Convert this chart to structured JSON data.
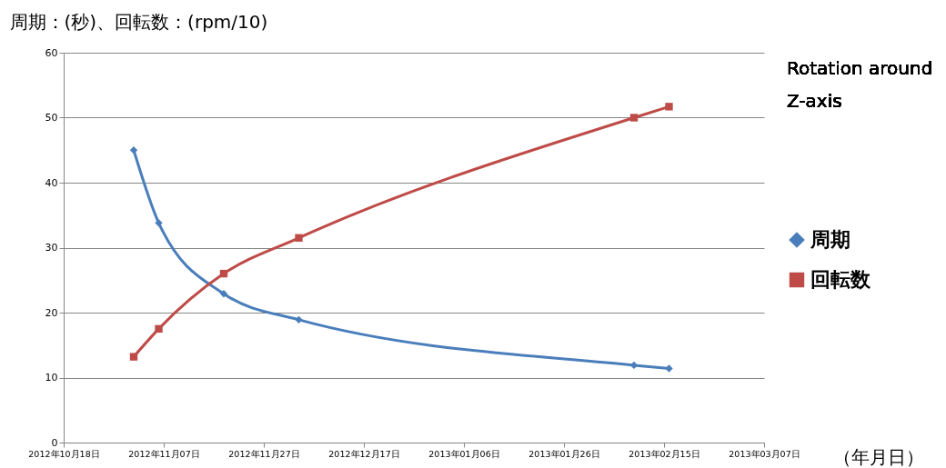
{
  "chart_data": {
    "type": "line",
    "ylabel": "周期：(秒)、回転数：(rpm/10)",
    "xlabel": "（年月日）",
    "annotations": [
      "Rotation around Z-axis"
    ],
    "x": [
      "2012-11-01",
      "2012-11-06",
      "2012-11-19",
      "2012-12-04",
      "2013-02-09",
      "2013-02-16"
    ],
    "series": [
      {
        "name": "周期",
        "color": "#4a7ebb",
        "marker": "diamond",
        "values": [
          45,
          33.8,
          22.9,
          18.9,
          11.9,
          11.4
        ]
      },
      {
        "name": "回転数",
        "color": "#be4b48",
        "marker": "square",
        "values": [
          13.2,
          17.5,
          26,
          31.5,
          50,
          51.7
        ]
      }
    ],
    "xlim": [
      "2012-10-18",
      "2013-03-07"
    ],
    "xticks": [
      {
        "value": "2012-10-18",
        "label": "2012年10月18日"
      },
      {
        "value": "2012-11-07",
        "label": "2012年11月07日"
      },
      {
        "value": "2012-11-27",
        "label": "2012年11月27日"
      },
      {
        "value": "2012-12-17",
        "label": "2012年12月17日"
      },
      {
        "value": "2013-01-06",
        "label": "2013年01月06日"
      },
      {
        "value": "2013-01-26",
        "label": "2013年01月26日"
      },
      {
        "value": "2013-02-15",
        "label": "2013年02月15日"
      },
      {
        "value": "2013-03-07",
        "label": "2013年03月07日"
      }
    ],
    "ylim": [
      0,
      60
    ],
    "yticks": [
      0,
      10,
      20,
      30,
      40,
      50,
      60
    ],
    "grid": "y",
    "legend": "right"
  }
}
